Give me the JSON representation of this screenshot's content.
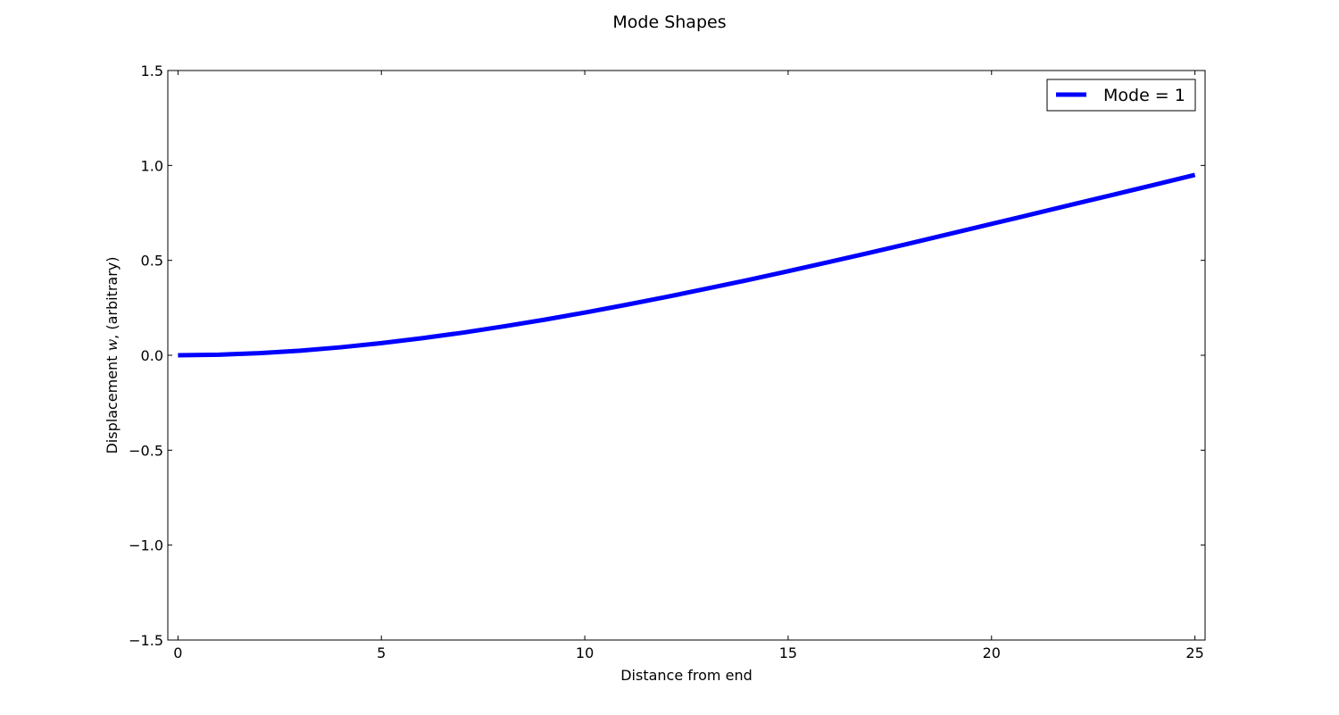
{
  "chart_data": {
    "type": "line",
    "title": "Mode Shapes",
    "xlabel": "Distance from end",
    "ylabel": "Displacement",
    "ylabel_symbol": "w",
    "ylabel_suffix": ", (arbitrary)",
    "xlim": [
      -0.25,
      25.25
    ],
    "ylim": [
      -1.5,
      1.5
    ],
    "xticks": [
      0,
      5,
      10,
      15,
      20,
      25
    ],
    "yticks": [
      -1.5,
      -1.0,
      -0.5,
      0.0,
      0.5,
      1.0,
      1.5
    ],
    "xtick_labels": [
      "0",
      "5",
      "10",
      "15",
      "20",
      "25"
    ],
    "ytick_labels": [
      "−1.5",
      "−1.0",
      "−0.5",
      "0.0",
      "0.5",
      "1.0",
      "1.5"
    ],
    "grid": false,
    "legend_position": "top-right",
    "series": [
      {
        "name": "Mode = 1",
        "color": "#0000ff",
        "x": [
          0,
          1,
          2,
          3,
          4,
          5,
          6,
          7,
          8,
          9,
          10,
          11,
          12,
          13,
          14,
          15,
          16,
          17,
          18,
          19,
          20,
          21,
          22,
          23,
          24,
          25
        ],
        "y": [
          0.0,
          0.003,
          0.011,
          0.024,
          0.042,
          0.064,
          0.09,
          0.119,
          0.152,
          0.187,
          0.225,
          0.265,
          0.307,
          0.351,
          0.396,
          0.443,
          0.491,
          0.54,
          0.59,
          0.641,
          0.692,
          0.743,
          0.795,
          0.846,
          0.898,
          0.95
        ]
      }
    ]
  }
}
